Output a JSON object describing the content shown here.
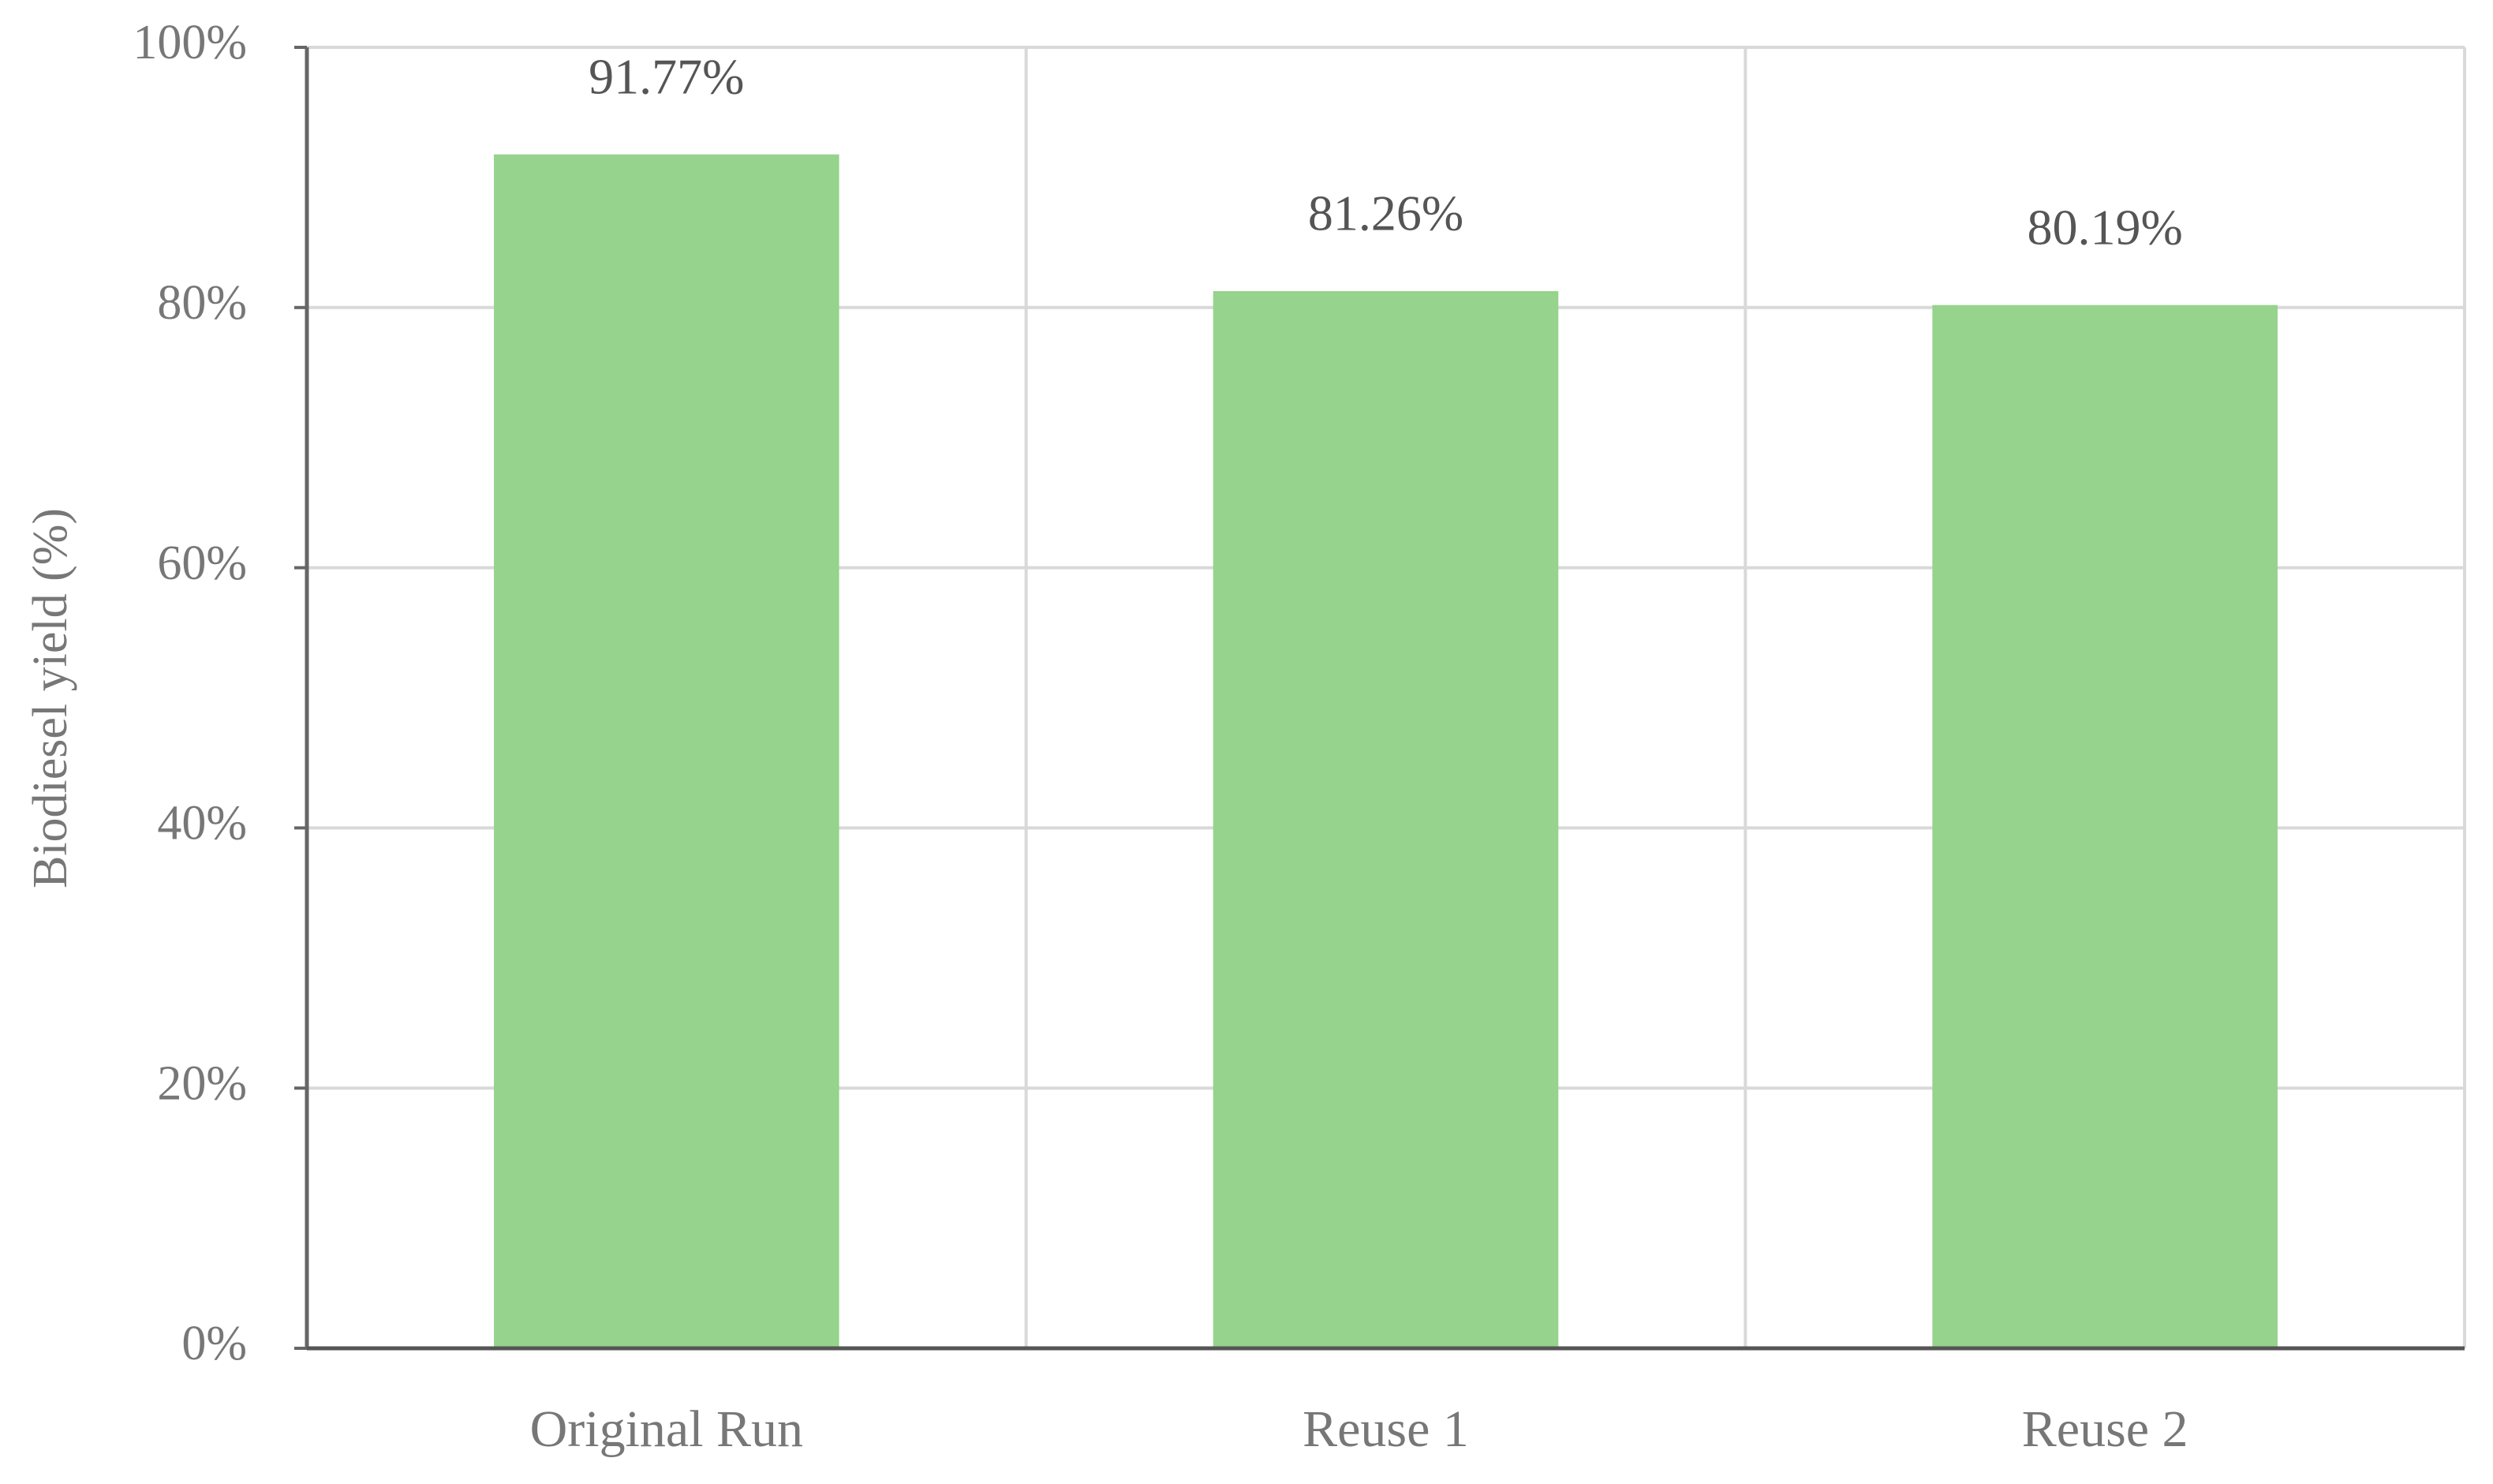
{
  "chart_data": {
    "type": "bar",
    "y_label": "Biodiesel yield (%)",
    "categories": [
      "Original Run",
      "Reuse 1",
      "Reuse 2"
    ],
    "values": [
      91.77,
      81.26,
      80.19
    ],
    "value_labels": [
      "91.77%",
      "81.26%",
      "80.19%"
    ],
    "color": "#96d38c",
    "ylim": [
      0,
      100
    ],
    "yticks": [
      {
        "value": 0,
        "label": "0%"
      },
      {
        "value": 20,
        "label": "20%"
      },
      {
        "value": 40,
        "label": "40%"
      },
      {
        "value": 60,
        "label": "60%"
      },
      {
        "value": 80,
        "label": "80%"
      },
      {
        "value": 100,
        "label": "100%"
      }
    ],
    "grid": true
  }
}
